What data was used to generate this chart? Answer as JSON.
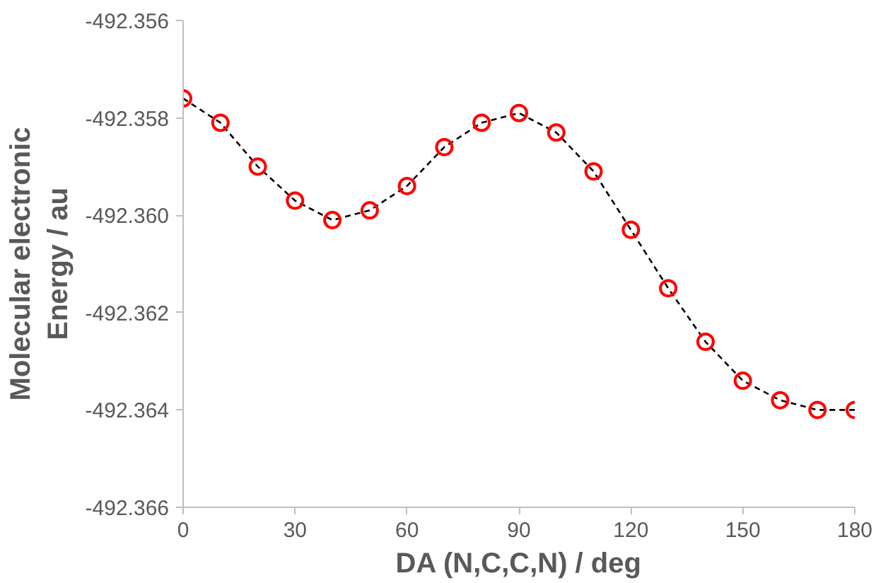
{
  "chart_data": {
    "type": "line",
    "xlabel": "DA (N,C,C,N) / deg",
    "ylabel": "Molecular electronic Energy / au",
    "x": [
      0,
      10,
      20,
      30,
      40,
      50,
      60,
      70,
      80,
      90,
      100,
      110,
      120,
      130,
      140,
      150,
      160,
      170,
      180
    ],
    "series": [
      {
        "color": "#ff0000",
        "values": [
          -492.3576,
          -492.3581,
          -492.359,
          -492.3597,
          -492.3601,
          -492.3599,
          -492.3594,
          -492.3586,
          -492.3581,
          -492.3579,
          -492.3583,
          -492.3591,
          -492.3603,
          -492.3615,
          -492.3626,
          -492.3634,
          -492.3638,
          -492.364,
          -492.364
        ]
      }
    ],
    "xlim": [
      0,
      180
    ],
    "xticks": [
      0,
      30,
      60,
      90,
      120,
      150,
      180
    ],
    "ylim": [
      -492.366,
      -492.356
    ],
    "yticks": [
      -492.366,
      -492.364,
      -492.362,
      {
        "value": -492.36,
        "label": "-492.360"
      },
      -492.358,
      -492.356
    ],
    "grid": false,
    "marker": "circle",
    "line_style": "dashed"
  }
}
